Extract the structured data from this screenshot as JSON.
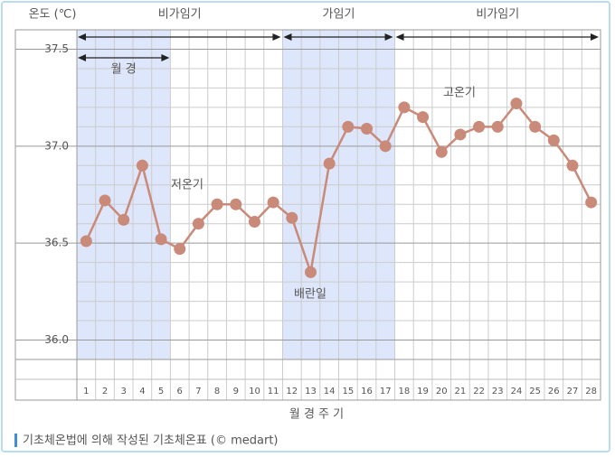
{
  "chart_data": {
    "type": "line",
    "y_axis_label": "온도 (℃)",
    "x_axis_label": "월 경 주 기",
    "caption": "기초체온법에 의해 작성된 기초체온표 (© medart)",
    "categories": [
      "1",
      "2",
      "3",
      "4",
      "5",
      "6",
      "7",
      "8",
      "9",
      "10",
      "11",
      "12",
      "13",
      "14",
      "15",
      "16",
      "17",
      "18",
      "19",
      "20",
      "21",
      "22",
      "23",
      "24",
      "25",
      "26",
      "27",
      "28"
    ],
    "series": [
      {
        "name": "기초체온",
        "color": "#c98a7a",
        "values": [
          36.51,
          36.72,
          36.62,
          36.9,
          36.52,
          36.47,
          36.6,
          36.7,
          36.7,
          36.61,
          36.71,
          36.63,
          36.35,
          36.91,
          37.1,
          37.09,
          37.0,
          37.2,
          37.15,
          36.97,
          37.06,
          37.1,
          37.1,
          37.22,
          37.1,
          37.03,
          36.9,
          36.71
        ]
      }
    ],
    "ylim": [
      35.9,
      37.6
    ],
    "yticks": [
      {
        "value": 36,
        "label": "36.0"
      },
      36.5,
      {
        "value": 37,
        "label": "37.0"
      },
      37.5
    ],
    "minor_yticks": [
      36.1,
      36.2,
      36.3,
      36.4,
      36.6,
      36.7,
      36.8,
      36.9,
      37.1,
      37.2,
      37.3,
      37.4
    ],
    "grid": true,
    "phases": [
      {
        "label": "비가임기",
        "start": 1,
        "end": 11,
        "shaded": false
      },
      {
        "label": "가임기",
        "start": 12,
        "end": 17,
        "shaded": true
      },
      {
        "label": "비가임기",
        "start": 18,
        "end": 28,
        "shaded": false
      }
    ],
    "menstruation": {
      "label": "월 경",
      "start": 1,
      "end": 5,
      "shaded": true
    },
    "annotations": [
      "저온기",
      "배란일",
      "고온기"
    ]
  }
}
